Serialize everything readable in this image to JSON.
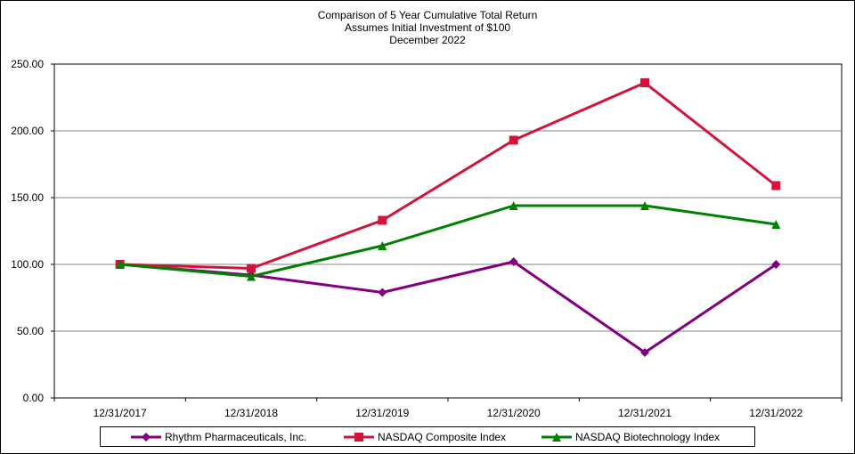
{
  "chart_data": {
    "type": "line",
    "title_lines": [
      "Comparison  of 5 Year Cumulative  Total Return",
      "Assumes Initial Investment  of $100",
      "December 2022"
    ],
    "categories": [
      "12/31/2017",
      "12/31/2018",
      "12/31/2019",
      "12/31/2020",
      "12/31/2021",
      "12/31/2022"
    ],
    "y_tick_labels": [
      "250.00",
      "200.00",
      "150.00",
      "100.00",
      "50.00",
      "0.00"
    ],
    "y_ticks": [
      250,
      200,
      150,
      100,
      50,
      0
    ],
    "ylim": [
      0,
      250
    ],
    "grid": true,
    "legend_position": "bottom",
    "series": [
      {
        "name": "Rhythm Pharmaceuticals, Inc.",
        "color": "#800080",
        "marker": "diamond",
        "values": [
          100.0,
          92.0,
          79.0,
          102.0,
          34.0,
          100.0
        ]
      },
      {
        "name": "NASDAQ Composite Index",
        "color": "#D2143A",
        "marker": "square",
        "values": [
          100.0,
          97.0,
          133.0,
          193.0,
          236.0,
          159.0
        ]
      },
      {
        "name": "NASDAQ Biotechnology Index",
        "color": "#008000",
        "marker": "triangle",
        "values": [
          100.0,
          91.0,
          114.0,
          144.0,
          144.0,
          130.0
        ]
      }
    ]
  }
}
